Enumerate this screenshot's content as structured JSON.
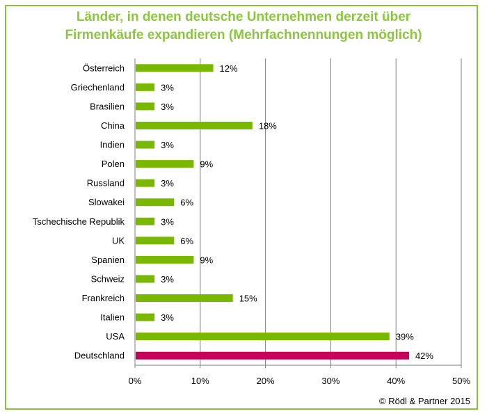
{
  "chart_data": {
    "type": "bar",
    "orientation": "horizontal",
    "title_line1": "Länder, in denen deutsche Unternehmen derzeit über",
    "title_line2": "Firmenkäufe expandieren (Mehrfachnennungen möglich)",
    "categories": [
      "Österreich",
      "Griechenland",
      "Brasilien",
      "China",
      "Indien",
      "Polen",
      "Russland",
      "Slowakei",
      "Tschechische Republik",
      "UK",
      "Spanien",
      "Schweiz",
      "Frankreich",
      "Italien",
      "USA",
      "Deutschland"
    ],
    "values": [
      12,
      3,
      3,
      18,
      3,
      9,
      3,
      6,
      3,
      6,
      9,
      3,
      15,
      3,
      39,
      42
    ],
    "value_labels": [
      "12%",
      "3%",
      "3%",
      "18%",
      "3%",
      "9%",
      "3%",
      "6%",
      "3%",
      "6%",
      "9%",
      "3%",
      "15%",
      "3%",
      "39%",
      "42%"
    ],
    "bar_colors": [
      "#7ab800",
      "#7ab800",
      "#7ab800",
      "#7ab800",
      "#7ab800",
      "#7ab800",
      "#7ab800",
      "#7ab800",
      "#7ab800",
      "#7ab800",
      "#7ab800",
      "#7ab800",
      "#7ab800",
      "#7ab800",
      "#7ab800",
      "#c8005a"
    ],
    "xlim": [
      0,
      50
    ],
    "x_ticks": [
      0,
      10,
      20,
      30,
      40,
      50
    ],
    "x_tick_labels": [
      "0%",
      "10%",
      "20%",
      "30%",
      "40%",
      "50%"
    ],
    "grid": true,
    "colors": {
      "title": "#8cc63e",
      "frame": "#8cbf3c",
      "highlight": "#c8005a",
      "bar": "#7ab800"
    }
  },
  "footer": {
    "copyright": "© Rödl & Partner 2015"
  }
}
